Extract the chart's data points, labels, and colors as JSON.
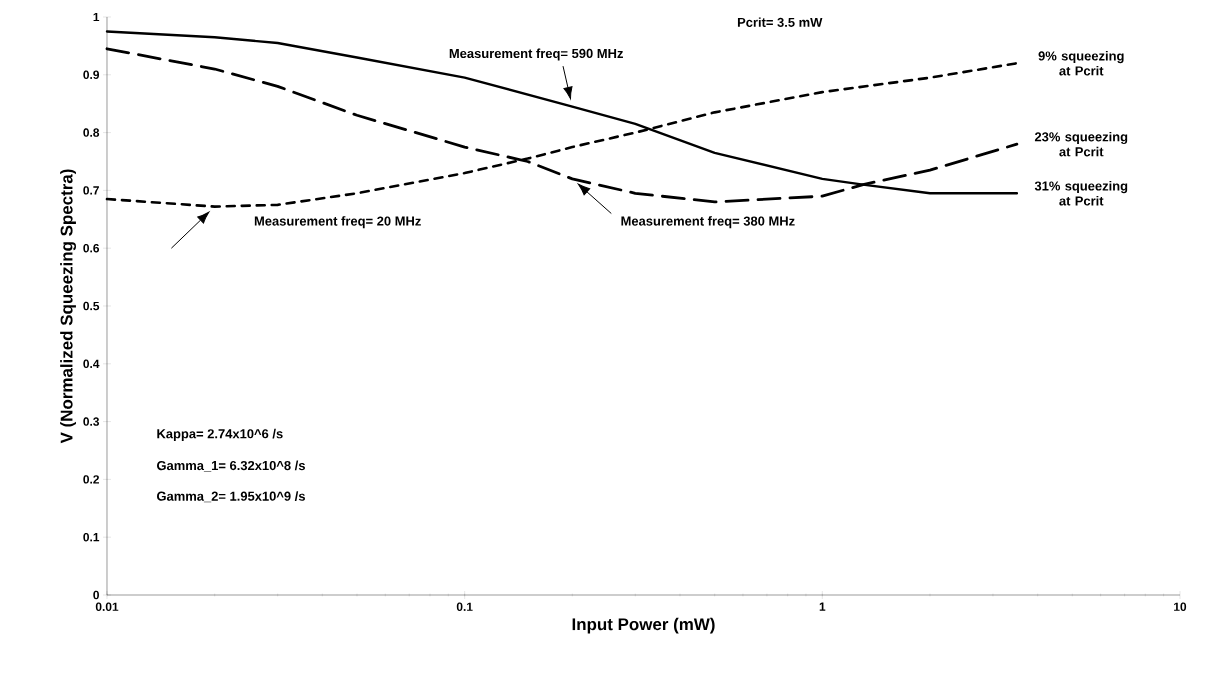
{
  "chart_data": {
    "type": "line",
    "xlabel": "Input Power (mW)",
    "ylabel": "V (Normalized Squeezing Spectra)",
    "log": "x",
    "xlim": [
      0.01,
      10
    ],
    "ylim": [
      0,
      1
    ],
    "xticks": [
      0.01,
      0.1,
      1,
      10
    ],
    "yticks": [
      0,
      0.1,
      0.2,
      0.3,
      0.4,
      0.5,
      0.6,
      0.7,
      0.8,
      0.9,
      1
    ],
    "marker": "none",
    "series": [
      {
        "name": "Measurement freq= 590 MHz",
        "color": "#000000",
        "line_style": "solid",
        "x": [
          0.01,
          0.02,
          0.03,
          0.05,
          0.1,
          0.2,
          0.3,
          0.5,
          1,
          1.3,
          2,
          3.5
        ],
        "values": [
          0.975,
          0.965,
          0.955,
          0.93,
          0.895,
          0.845,
          0.815,
          0.765,
          0.72,
          0.71,
          0.695,
          0.695
        ]
      },
      {
        "name": "Measurement freq= 380 MHz",
        "color": "#000000",
        "line_style": "dashed",
        "x": [
          0.01,
          0.02,
          0.03,
          0.05,
          0.1,
          0.15,
          0.2,
          0.3,
          0.5,
          1,
          1.3,
          2,
          3.5
        ],
        "values": [
          0.945,
          0.91,
          0.88,
          0.83,
          0.775,
          0.75,
          0.72,
          0.695,
          0.68,
          0.69,
          0.71,
          0.735,
          0.78
        ]
      },
      {
        "name": "Measurement freq= 20 MHz",
        "color": "#000000",
        "line_style": "dotted",
        "x": [
          0.01,
          0.02,
          0.03,
          0.05,
          0.1,
          0.15,
          0.2,
          0.3,
          0.5,
          1,
          2,
          3.5
        ],
        "values": [
          0.685,
          0.672,
          0.675,
          0.695,
          0.73,
          0.755,
          0.775,
          0.8,
          0.835,
          0.87,
          0.895,
          0.92
        ]
      }
    ],
    "annotations": [
      "Pcrit= 3.5 mW",
      "9% squeezing at Pcrit",
      "23% squeezing at Pcrit",
      "31% squeezing at Pcrit",
      "Kappa= 2.74x10^6 /s",
      "Gamma_1= 6.32x10^8 /s",
      "Gamma_2= 1.95x10^9 /s"
    ]
  }
}
